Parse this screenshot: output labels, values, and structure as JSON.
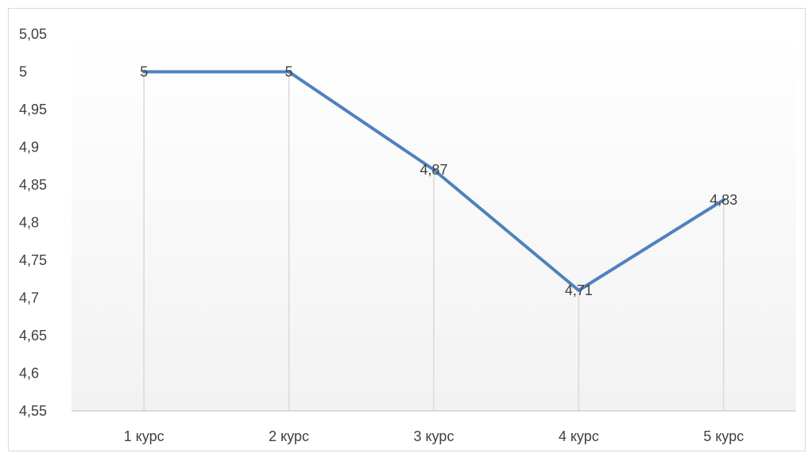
{
  "chart_data": {
    "type": "line",
    "categories": [
      "1 курс",
      "2 курс",
      "3 курс",
      "4 курс",
      "5 курс"
    ],
    "series": [
      {
        "values": [
          5,
          5,
          4.87,
          4.71,
          4.83
        ],
        "labels": [
          "5",
          "5",
          "4,87",
          "4,71",
          "4,83"
        ],
        "color": "#4f81bd"
      }
    ],
    "title": "",
    "xlabel": "",
    "ylabel": "",
    "ylim": [
      4.55,
      5.05
    ],
    "yticks": [
      {
        "value": 5.05,
        "label": "5,05"
      },
      {
        "value": 5.0,
        "label": "5"
      },
      {
        "value": 4.95,
        "label": "4,95"
      },
      {
        "value": 4.9,
        "label": "4,9"
      },
      {
        "value": 4.85,
        "label": "4,85"
      },
      {
        "value": 4.8,
        "label": "4,8"
      },
      {
        "value": 4.75,
        "label": "4,75"
      },
      {
        "value": 4.7,
        "label": "4,7"
      },
      {
        "value": 4.65,
        "label": "4,65"
      },
      {
        "value": 4.6,
        "label": "4,6"
      },
      {
        "value": 4.55,
        "label": "4,55"
      }
    ],
    "grid": false,
    "drop_lines": true,
    "legend": "none",
    "colors": {
      "line": "#4f81bd",
      "drop_line": "#d9d9d9",
      "axis": "#bfbfbf",
      "text": "#404040",
      "plot_bg_top": "#ffffff",
      "plot_bg_bottom": "#f2f2f2"
    }
  }
}
